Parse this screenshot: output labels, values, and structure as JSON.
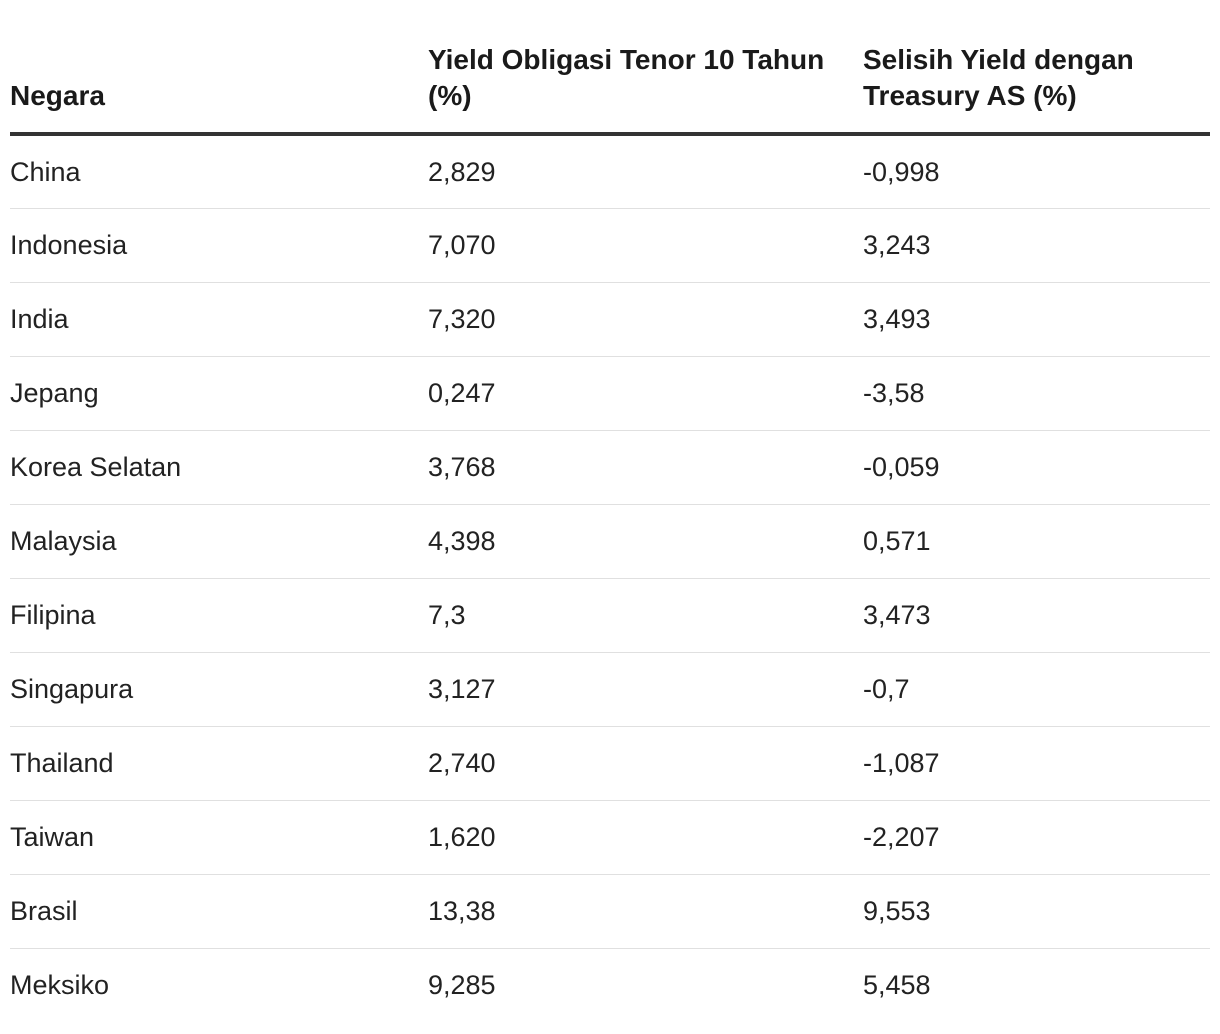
{
  "chart_data": {
    "type": "table",
    "columns": [
      "Negara",
      "Yield Obligasi Tenor 10 Tahun (%)",
      "Selisih Yield dengan Treasury AS (%)"
    ],
    "rows": [
      [
        "China",
        "2,829",
        "-0,998"
      ],
      [
        "Indonesia",
        "7,070",
        "3,243"
      ],
      [
        "India",
        "7,320",
        "3,493"
      ],
      [
        "Jepang",
        "0,247",
        "-3,58"
      ],
      [
        "Korea Selatan",
        "3,768",
        "-0,059"
      ],
      [
        "Malaysia",
        "4,398",
        "0,571"
      ],
      [
        "Filipina",
        "7,3",
        "3,473"
      ],
      [
        "Singapura",
        "3,127",
        "-0,7"
      ],
      [
        "Thailand",
        "2,740",
        "-1,087"
      ],
      [
        "Taiwan",
        "1,620",
        "-2,207"
      ],
      [
        "Brasil",
        "13,38",
        "9,553"
      ],
      [
        "Meksiko",
        "9,285",
        "5,458"
      ]
    ]
  }
}
